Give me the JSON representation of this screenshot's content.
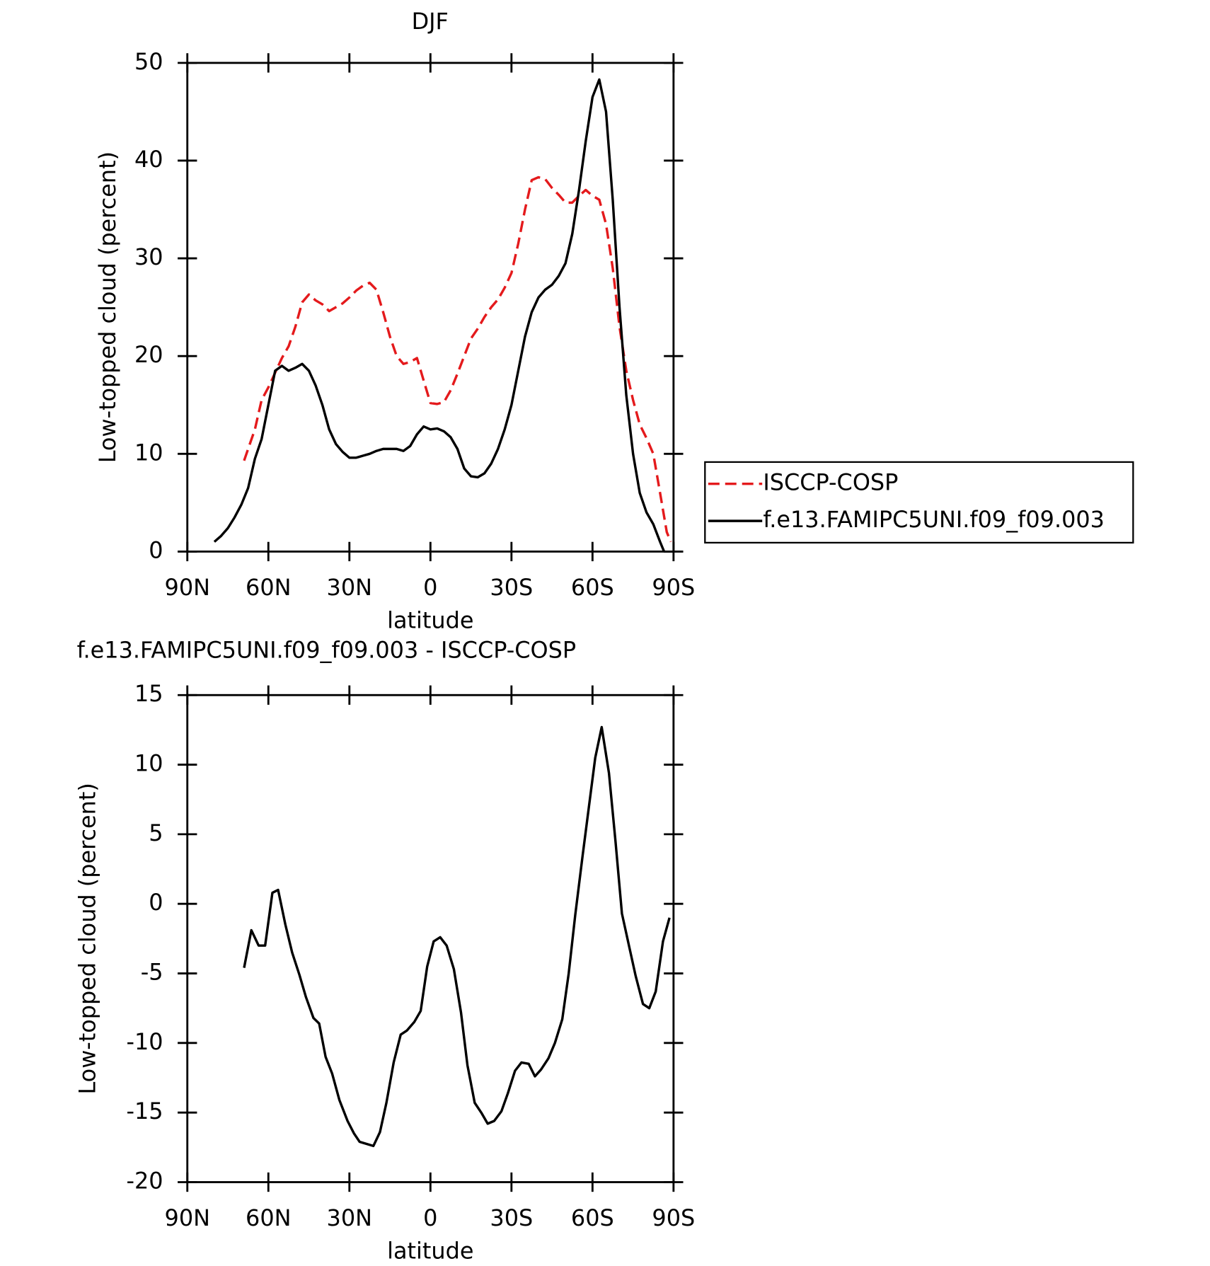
{
  "chart_data": [
    {
      "type": "line",
      "title": "DJF",
      "x_label": "latitude",
      "y_label": "Low-topped cloud (percent)",
      "xlim": [
        90,
        -90
      ],
      "xticks": [
        {
          "value": 90,
          "label": "90N"
        },
        {
          "value": 60,
          "label": "60N"
        },
        {
          "value": 30,
          "label": "30N"
        },
        0,
        {
          "value": -30,
          "label": "30S"
        },
        {
          "value": -60,
          "label": "60S"
        },
        {
          "value": -90,
          "label": "90S"
        }
      ],
      "ylim": [
        0,
        50
      ],
      "yticks": [
        0,
        10,
        20,
        30,
        40,
        50
      ],
      "legend": "right",
      "series": [
        {
          "name": "ISCCP-COSP",
          "color": "#e41a1c",
          "dash": true,
          "x": [
            69,
            67.5,
            65,
            62.5,
            60,
            57.5,
            55,
            52.5,
            50,
            47.5,
            45,
            42.5,
            40,
            37.5,
            35,
            32.5,
            30,
            27.5,
            25,
            22.5,
            20,
            17.5,
            15,
            12.5,
            10,
            7.5,
            5,
            2.5,
            0,
            -2.5,
            -5,
            -7.5,
            -10,
            -12.5,
            -15,
            -17.5,
            -20,
            -22.5,
            -25,
            -27.5,
            -30,
            -32.5,
            -35,
            -37.5,
            -40,
            -42.5,
            -45,
            -47.5,
            -50,
            -52.5,
            -55,
            -57.5,
            -60,
            -62.5,
            -65,
            -67.5,
            -70,
            -72.5,
            -75,
            -77.5,
            -80,
            -82.5,
            -85,
            -87.5,
            -89
          ],
          "values": [
            9.3,
            10.5,
            12.5,
            15.5,
            16.8,
            18.3,
            19.8,
            21,
            23,
            25.5,
            26.3,
            25.7,
            25.3,
            24.6,
            25,
            25.4,
            26,
            26.7,
            27.2,
            27.5,
            26.8,
            24.5,
            22,
            20,
            19.2,
            19.4,
            19.8,
            17.5,
            15.2,
            15.1,
            15.3,
            16.5,
            18.2,
            20,
            21.8,
            22.8,
            24,
            25,
            25.8,
            27,
            28.5,
            31.5,
            35,
            38,
            38.3,
            38.1,
            37.2,
            36.5,
            35.7,
            35.7,
            36.4,
            37,
            36.4,
            36,
            33.5,
            29,
            23,
            18.5,
            15.5,
            13,
            11.6,
            10,
            6,
            2,
            1
          ]
        },
        {
          "name": "f.e13.FAMIPC5UNI.f09_f09.003",
          "color": "#000000",
          "dash": false,
          "x": [
            80,
            77.5,
            75,
            72.5,
            70,
            67.5,
            65,
            62.5,
            60,
            57.5,
            55,
            52.5,
            50,
            47.5,
            45,
            42.5,
            40,
            37.5,
            35,
            32.5,
            30,
            27.5,
            25,
            22.5,
            20,
            17.5,
            15,
            12.5,
            10,
            7.5,
            5,
            2.5,
            0,
            -2.5,
            -5,
            -7.5,
            -10,
            -12.5,
            -15,
            -17.5,
            -20,
            -22.5,
            -25,
            -27.5,
            -30,
            -32.5,
            -35,
            -37.5,
            -40,
            -42.5,
            -45,
            -47.5,
            -50,
            -52.5,
            -55,
            -57.5,
            -60,
            -62.5,
            -65,
            -67.5,
            -70,
            -72.5,
            -75,
            -77.5,
            -80,
            -82.5,
            -85,
            -86.5
          ],
          "values": [
            1.0,
            1.6,
            2.4,
            3.5,
            4.8,
            6.5,
            9.5,
            11.5,
            15,
            18.5,
            19,
            18.5,
            18.8,
            19.2,
            18.5,
            17,
            15,
            12.5,
            11,
            10.2,
            9.6,
            9.6,
            9.8,
            10,
            10.3,
            10.5,
            10.5,
            10.5,
            10.3,
            10.8,
            12,
            12.8,
            12.5,
            12.6,
            12.3,
            11.7,
            10.5,
            8.5,
            7.7,
            7.6,
            8.0,
            9.0,
            10.5,
            12.5,
            15,
            18.5,
            22,
            24.5,
            26,
            26.8,
            27.3,
            28.2,
            29.5,
            32.5,
            37,
            42,
            46.5,
            48.3,
            45,
            36,
            25,
            16,
            10,
            6,
            4,
            2.8,
            1,
            0
          ]
        }
      ]
    },
    {
      "type": "line",
      "title": "f.e13.FAMIPC5UNI.f09_f09.003 - ISCCP-COSP",
      "x_label": "latitude",
      "y_label": "Low-topped cloud (percent)",
      "xlim": [
        90,
        -90
      ],
      "xticks": [
        {
          "value": 90,
          "label": "90N"
        },
        {
          "value": 60,
          "label": "60N"
        },
        {
          "value": 30,
          "label": "30N"
        },
        0,
        {
          "value": -30,
          "label": "30S"
        },
        {
          "value": -60,
          "label": "60S"
        },
        {
          "value": -90,
          "label": "90S"
        }
      ],
      "ylim": [
        -20,
        15
      ],
      "yticks": [
        -20,
        -15,
        -10,
        -5,
        0,
        5,
        10,
        15
      ],
      "color": "#000000",
      "x": [
        69,
        66.3,
        63.6,
        61.2,
        58.5,
        56.4,
        53.7,
        51.2,
        48.5,
        46.1,
        43.3,
        41.2,
        38.8,
        36.4,
        33.7,
        30.7,
        28.3,
        26.2,
        21.1,
        18.7,
        16.3,
        13.6,
        11.0,
        8.7,
        6.0,
        3.6,
        1.2,
        -1.2,
        -3.6,
        -6.0,
        -8.7,
        -11.3,
        -13.7,
        -16.4,
        -18.8,
        -21.2,
        -23.6,
        -26.3,
        -28.7,
        -31.3,
        -33.7,
        -36.4,
        -38.7,
        -41.0,
        -43.7,
        -46.1,
        -48.8,
        -51.2,
        -53.6,
        -56.3,
        -58.7,
        -61.0,
        -63.4,
        -66.1,
        -68.5,
        -70.9,
        -73.6,
        -76.0,
        -78.7,
        -81.0,
        -83.4,
        -86.1,
        -88.5
      ],
      "values": [
        -4.6,
        -1.9,
        -3.0,
        -3.0,
        0.8,
        1.0,
        -1.5,
        -3.5,
        -5.1,
        -6.7,
        -8.2,
        -8.6,
        -11,
        -12.2,
        -14.1,
        -15.6,
        -16.5,
        -17.1,
        -17.4,
        -16.4,
        -14.3,
        -11.4,
        -9.4,
        -9.1,
        -8.5,
        -7.7,
        -4.5,
        -2.7,
        -2.4,
        -3.0,
        -4.7,
        -7.8,
        -11.6,
        -14.3,
        -15.0,
        -15.8,
        -15.6,
        -14.9,
        -13.6,
        -12.0,
        -11.4,
        -11.5,
        -12.4,
        -11.9,
        -11.1,
        -10.0,
        -8.3,
        -5.0,
        -0.8,
        3.4,
        7.0,
        10.5,
        12.7,
        9.4,
        4.5,
        -0.7,
        -3.1,
        -5.2,
        -7.2,
        -7.5,
        -6.3,
        -2.7,
        -1.0
      ]
    }
  ]
}
